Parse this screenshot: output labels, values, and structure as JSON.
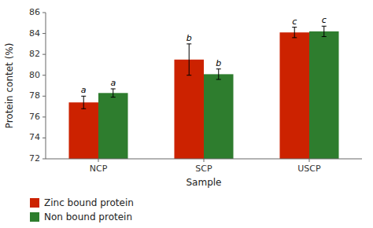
{
  "chart_data": {
    "type": "bar",
    "xlabel": "Sample",
    "ylabel": "Protein contet (%)",
    "categories": [
      "NCP",
      "SCP",
      "USCP"
    ],
    "series": [
      {
        "name": "Zinc bound protein",
        "color": "#cc2200",
        "values": [
          77.4,
          81.5,
          84.1
        ],
        "errors": [
          0.6,
          1.5,
          0.5
        ],
        "annotations": [
          "a",
          "b",
          "c"
        ]
      },
      {
        "name": "Non bound protein",
        "color": "#2e7d2e",
        "values": [
          78.3,
          80.1,
          84.2
        ],
        "errors": [
          0.4,
          0.5,
          0.5
        ],
        "annotations": [
          "a",
          "b",
          "c"
        ]
      }
    ],
    "ylim": [
      72,
      86
    ],
    "yticks": [
      72,
      74,
      76,
      78,
      80,
      82,
      84,
      86
    ],
    "grid": false,
    "legend": "bottom"
  }
}
